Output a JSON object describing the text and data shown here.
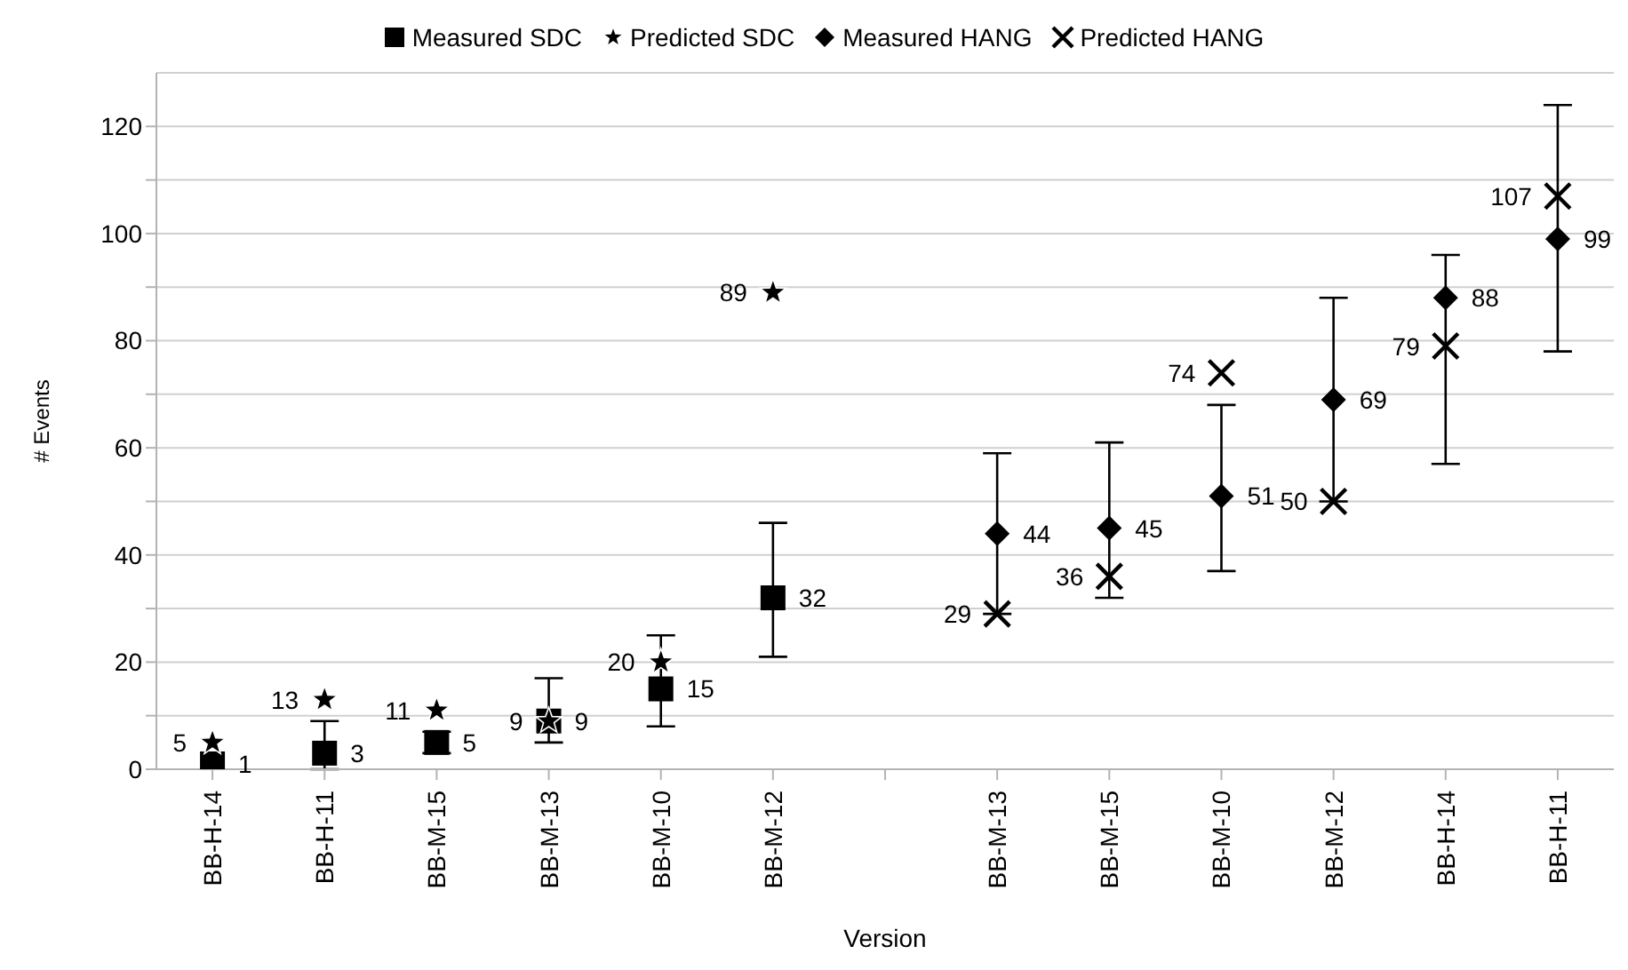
{
  "chart_data": {
    "type": "scatter",
    "xlabel": "Version",
    "ylabel": "# Events",
    "categories": [
      "BB-H-14",
      "BB-H-11",
      "BB-M-15",
      "BB-M-13",
      "BB-M-10",
      "BB-M-12",
      null,
      "BB-M-13",
      "BB-M-15",
      "BB-M-10",
      "BB-M-12",
      "BB-H-14",
      "BB-H-11"
    ],
    "series": [
      {
        "name": "Measured SDC",
        "color": "#000000",
        "marker": "square",
        "values": [
          1,
          3,
          5,
          9,
          15,
          32,
          null,
          null,
          null,
          null,
          null,
          null,
          null
        ],
        "errors": [
          null,
          [
            0,
            9
          ],
          [
            3,
            7
          ],
          [
            5,
            17
          ],
          [
            8,
            25
          ],
          [
            21,
            46
          ],
          null,
          null,
          null,
          null,
          null,
          null,
          null
        ]
      },
      {
        "name": "Predicted SDC",
        "color": "#000000",
        "marker": "star",
        "values": [
          5,
          13,
          11,
          9,
          20,
          89,
          null,
          null,
          null,
          null,
          null,
          null,
          null
        ]
      },
      {
        "name": "Measured HANG",
        "color": "#000000",
        "marker": "diamond",
        "values": [
          null,
          null,
          null,
          null,
          null,
          null,
          null,
          44,
          45,
          51,
          69,
          88,
          99
        ],
        "errors": [
          null,
          null,
          null,
          null,
          null,
          null,
          null,
          [
            29,
            59
          ],
          [
            32,
            61
          ],
          [
            37,
            68
          ],
          [
            50,
            88
          ],
          [
            57,
            96
          ],
          [
            78,
            124
          ]
        ]
      },
      {
        "name": "Predicted HANG",
        "color": "#000000",
        "marker": "cross",
        "values": [
          null,
          null,
          null,
          null,
          null,
          null,
          null,
          29,
          36,
          74,
          50,
          79,
          107
        ]
      }
    ],
    "ylim": [
      0,
      130
    ],
    "yticks": [
      0,
      {
        "value": 10,
        "label": null
      },
      20,
      {
        "value": 30,
        "label": null
      },
      40,
      {
        "value": 50,
        "label": null
      },
      60,
      {
        "value": 70,
        "label": null
      },
      80,
      {
        "value": 90,
        "label": null
      },
      100,
      {
        "value": 110,
        "label": null
      },
      120
    ],
    "grid": "y",
    "legend": "top",
    "data_labels": true
  }
}
